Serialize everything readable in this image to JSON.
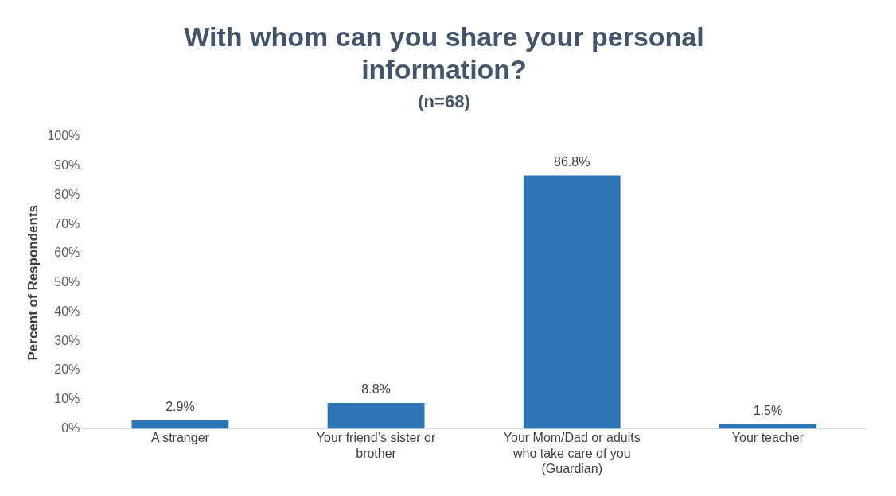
{
  "chart_data": {
    "type": "bar",
    "title": "With whom can you share your personal information?",
    "subtitle": "(n=68)",
    "ylabel": "Percent of Respondents",
    "categories": [
      "A stranger",
      "Your friend’s sister or brother",
      "Your Mom/Dad or adults who take care of you (Guardian)",
      "Your teacher"
    ],
    "values": [
      2.9,
      8.8,
      86.8,
      1.5
    ],
    "value_labels": [
      "2.9%",
      "8.8%",
      "86.8%",
      "1.5%"
    ],
    "color": "#2e75b6",
    "ylim": [
      0,
      100
    ],
    "yticks": [
      {
        "value": 0,
        "label": "0%"
      },
      {
        "value": 10,
        "label": "10%"
      },
      {
        "value": 20,
        "label": "20%"
      },
      {
        "value": 30,
        "label": "30%"
      },
      {
        "value": 40,
        "label": "40%"
      },
      {
        "value": 50,
        "label": "50%"
      },
      {
        "value": 60,
        "label": "60%"
      },
      {
        "value": 70,
        "label": "70%"
      },
      {
        "value": 80,
        "label": "80%"
      },
      {
        "value": 90,
        "label": "90%"
      },
      {
        "value": 100,
        "label": "100%"
      }
    ],
    "grid": false,
    "legend": false
  }
}
